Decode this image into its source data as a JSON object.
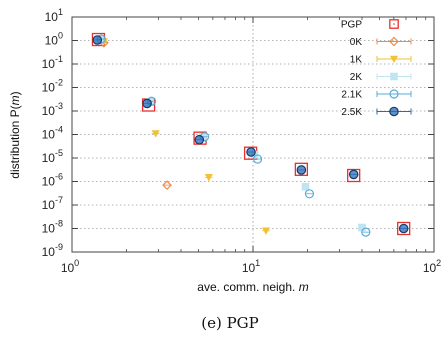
{
  "caption": "(e) PGP",
  "chart_data": {
    "type": "scatter",
    "title": "",
    "xlabel": "ave. comm. neigh. m",
    "ylabel": "distribution P(m)",
    "xscale": "log",
    "yscale": "log",
    "xlim": [
      1,
      100
    ],
    "ylim": [
      1e-09,
      10
    ],
    "grid": "major, dotted",
    "legend_position": "top-right",
    "x_ticks": [
      {
        "value": 1,
        "base": "10",
        "exp": "0"
      },
      {
        "value": 10,
        "base": "10",
        "exp": "1"
      },
      {
        "value": 100,
        "base": "10",
        "exp": "2"
      }
    ],
    "y_ticks": [
      {
        "value": 1e-09,
        "base": "10",
        "exp": "-9"
      },
      {
        "value": 1e-08,
        "base": "10",
        "exp": "-8"
      },
      {
        "value": 1e-07,
        "base": "10",
        "exp": "-7"
      },
      {
        "value": 1e-06,
        "base": "10",
        "exp": "-6"
      },
      {
        "value": 1e-05,
        "base": "10",
        "exp": "-5"
      },
      {
        "value": 0.0001,
        "base": "10",
        "exp": "-4"
      },
      {
        "value": 0.001,
        "base": "10",
        "exp": "-3"
      },
      {
        "value": 0.01,
        "base": "10",
        "exp": "-2"
      },
      {
        "value": 0.1,
        "base": "10",
        "exp": "-1"
      },
      {
        "value": 1,
        "base": "10",
        "exp": "0"
      },
      {
        "value": 10,
        "base": "10",
        "exp": "1"
      }
    ],
    "series": [
      {
        "name": "PGP",
        "marker": "square-open",
        "color": "#e8302a",
        "points": [
          [
            1.4,
            1.1
          ],
          [
            2.65,
            0.0018
          ],
          [
            5.1,
            7e-05
          ],
          [
            9.7,
            1.6e-05
          ],
          [
            18.5,
            3.3e-06
          ],
          [
            36,
            1.8e-06
          ],
          [
            68,
            1e-08
          ]
        ]
      },
      {
        "name": "0K",
        "marker": "diamond-open",
        "color": "#f08a4b",
        "points": [
          [
            1.5,
            0.8
          ],
          [
            3.35,
            7e-07
          ]
        ]
      },
      {
        "name": "1K",
        "marker": "triangle-down",
        "color": "#f2c232",
        "points": [
          [
            1.5,
            0.9
          ],
          [
            2.9,
            0.00011
          ],
          [
            5.7,
            1.5e-06
          ],
          [
            11.8,
            8e-09
          ]
        ]
      },
      {
        "name": "2K",
        "marker": "square-filled",
        "color": "#bfe4f2",
        "points": [
          [
            1.42,
            1.1
          ],
          [
            2.7,
            0.0024
          ],
          [
            5.3,
            8e-05
          ],
          [
            10.2,
            1.4e-05
          ],
          [
            19.5,
            6e-07
          ],
          [
            40,
            1.1e-08
          ]
        ]
      },
      {
        "name": "2.1K",
        "marker": "circle-open",
        "color": "#5aacd6",
        "points": [
          [
            1.45,
            1.15
          ],
          [
            2.75,
            0.0026
          ],
          [
            5.4,
            8e-05
          ],
          [
            10.6,
            9e-06
          ],
          [
            20.5,
            3e-07
          ],
          [
            42,
            7e-09
          ]
        ]
      },
      {
        "name": "2.5K",
        "marker": "circle-filled",
        "color": "#2a6bb5",
        "points": [
          [
            1.38,
            1.05
          ],
          [
            2.6,
            0.0021
          ],
          [
            5.05,
            6e-05
          ],
          [
            9.75,
            1.8e-05
          ],
          [
            18.5,
            3.1e-06
          ],
          [
            36,
            2e-06
          ],
          [
            68,
            1e-08
          ]
        ]
      }
    ]
  }
}
